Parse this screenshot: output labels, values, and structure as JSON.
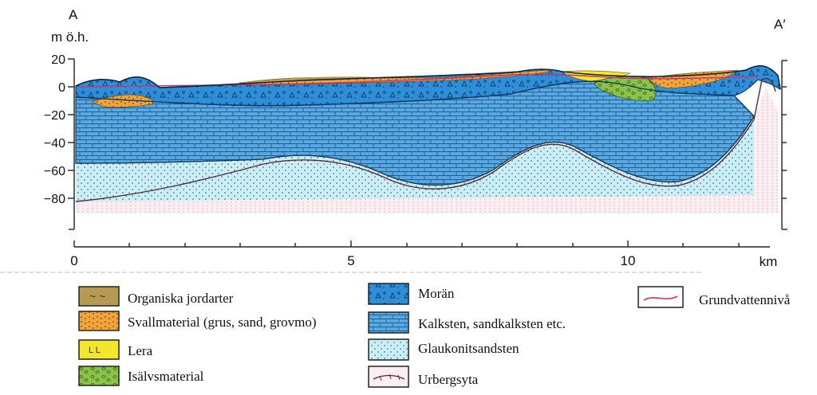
{
  "section": {
    "start_label": "A",
    "end_label": "A′",
    "y_unit": "m ö.h.",
    "y_ticks": [
      "20",
      "0",
      "−20",
      "−40",
      "−60",
      "−80"
    ],
    "x_ticks": [
      "0",
      "5",
      "10"
    ],
    "x_unit": "km"
  },
  "legend": {
    "organic": "Organiska jordarter",
    "shore": "Svallmaterial (grus, sand, grovmo)",
    "clay": "Lera",
    "glacifluvial": "Isälvsmaterial",
    "till": "Morän",
    "limestone": "Kalksten, sandkalksten etc.",
    "glauconite": "Glaukonitsandsten",
    "bedrock": "Urbergsyta",
    "groundwater": "Grundvattennivå"
  },
  "colors": {
    "till": "#2e8fd8",
    "limestone": "#5aa8e0",
    "glauconite": "#c9eef6",
    "bedrock": "#f4dde2",
    "organic": "#b79a52",
    "shore": "#eea53a",
    "clay": "#f4e62c",
    "glacifluvial": "#8cc24a",
    "groundwater": "#d0306a"
  }
}
